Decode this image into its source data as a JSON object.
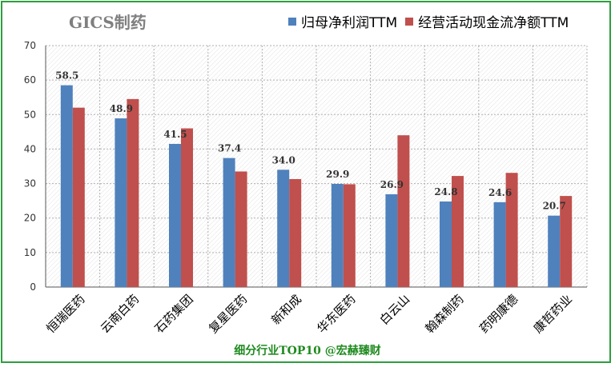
{
  "chart_data": {
    "type": "bar",
    "title": "GICS制药",
    "categories": [
      "恒瑞医药",
      "云南白药",
      "石药集团",
      "复星医药",
      "新和成",
      "华东医药",
      "白云山",
      "翰森制药",
      "药明康德",
      "康哲药业"
    ],
    "series": [
      {
        "name": "归母净利润TTM",
        "color": "#4f81bd",
        "values": [
          58.5,
          48.9,
          41.5,
          37.4,
          34.0,
          29.9,
          26.9,
          24.8,
          24.6,
          20.7
        ]
      },
      {
        "name": "经营活动现金流净额TTM",
        "color": "#c0504d",
        "values": [
          52.0,
          54.5,
          46.0,
          33.5,
          31.3,
          29.8,
          44.0,
          32.2,
          33.1,
          26.4
        ]
      }
    ],
    "data_labels": [
      "58.5",
      "48.9",
      "41.5",
      "37.4",
      "34.0",
      "29.9",
      "26.9",
      "24.8",
      "24.6",
      "20.7"
    ],
    "ylim": [
      0,
      70
    ],
    "yticks": [
      0,
      10,
      20,
      30,
      40,
      50,
      60,
      70
    ],
    "grid": true,
    "legend_position": "top-right"
  },
  "footer": "细分行业TOP10 @宏赫臻财"
}
